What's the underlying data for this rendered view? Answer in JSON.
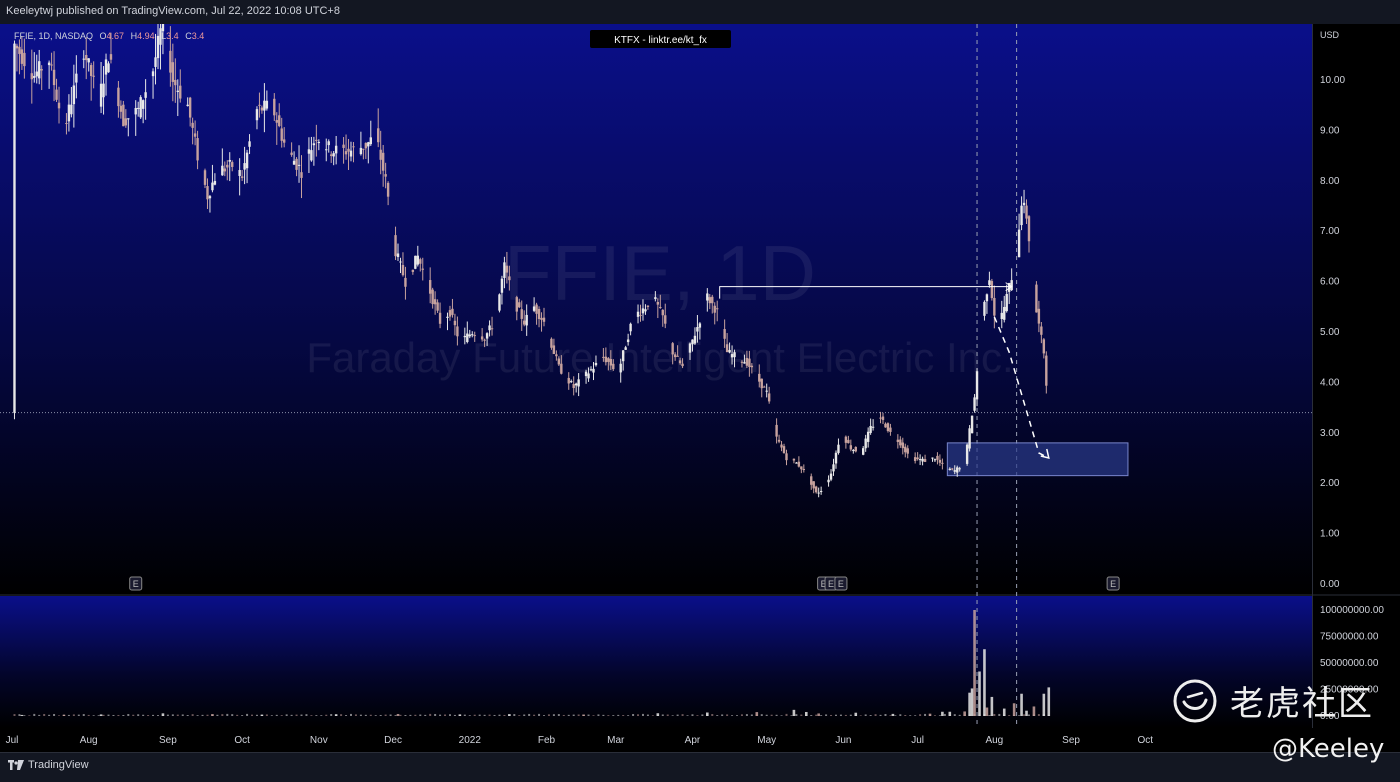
{
  "publisher": "Keeleytwj published on TradingView.com, Jul 22, 2022 10:08 UTC+8",
  "symbol_header": {
    "prefix": "FFIE, 1D, NASDAQ",
    "o_label": "O",
    "o_value": "4.67",
    "h_label": "H",
    "h_value": "4.94",
    "l_label": "L",
    "l_value": "3.4",
    "c_label": "C",
    "c_value": "3.4"
  },
  "banner": "KTFX - linktr.ee/kt_fx",
  "watermark_symbol": "FFIE, 1D",
  "watermark_name": "Faraday Future Intelligent Electric Inc.",
  "currency": "USD",
  "tradingview_label": "TradingView",
  "brand": {
    "name": "老虎社区",
    "handle": "@Keeley"
  },
  "earnings_marker": "E",
  "colors": {
    "background_top": "#0a0f8a",
    "background_bottom": "#000000",
    "candle_up": "#e8e8e8",
    "candle_down": "#c7a29e",
    "zone_fill": "#2b3a8c",
    "arrow": "#ffffff"
  },
  "chart_data": {
    "type": "candlestick",
    "price_axis": {
      "ticks": [
        "10.00",
        "9.00",
        "8.00",
        "7.00",
        "6.00",
        "5.00",
        "4.00",
        "3.00",
        "2.00",
        "1.00",
        "0.00"
      ],
      "ylim": [
        0,
        11.1
      ]
    },
    "volume_axis": {
      "ticks": [
        "100000000.00",
        "75000000.00",
        "50000000.00",
        "25000000.00",
        "0.00"
      ],
      "ylim": [
        0,
        106000000
      ]
    },
    "x_ticks": [
      "Jul",
      "Aug",
      "Sep",
      "Oct",
      "Nov",
      "Dec",
      "2022",
      "Feb",
      "Mar",
      "Apr",
      "May",
      "Jun",
      "Jul",
      "Aug",
      "Sep",
      "Oct"
    ],
    "x_tick_values": [
      -1,
      30,
      62,
      92,
      123,
      153,
      184,
      215,
      243,
      274,
      304,
      335,
      365,
      396,
      427,
      457
    ],
    "current_price": 3.4,
    "price_path": [
      [
        0,
        10.7
      ],
      [
        8,
        10.1
      ],
      [
        14,
        10.4
      ],
      [
        20,
        9.0
      ],
      [
        28,
        10.6
      ],
      [
        34,
        9.6
      ],
      [
        38,
        10.5
      ],
      [
        44,
        9.2
      ],
      [
        50,
        9.4
      ],
      [
        56,
        10.2
      ],
      [
        60,
        11.2
      ],
      [
        64,
        10.0
      ],
      [
        70,
        9.5
      ],
      [
        74,
        8.5
      ],
      [
        78,
        7.7
      ],
      [
        82,
        8.2
      ],
      [
        88,
        8.3
      ],
      [
        92,
        8.1
      ],
      [
        98,
        9.4
      ],
      [
        104,
        9.5
      ],
      [
        110,
        8.6
      ],
      [
        116,
        8.2
      ],
      [
        122,
        8.9
      ],
      [
        128,
        8.6
      ],
      [
        136,
        8.6
      ],
      [
        142,
        8.7
      ],
      [
        146,
        8.9
      ],
      [
        150,
        8.0
      ],
      [
        154,
        6.6
      ],
      [
        158,
        6.0
      ],
      [
        163,
        6.5
      ],
      [
        168,
        5.8
      ],
      [
        172,
        5.2
      ],
      [
        176,
        5.4
      ],
      [
        180,
        4.8
      ],
      [
        185,
        5.0
      ],
      [
        190,
        4.9
      ],
      [
        194,
        5.2
      ],
      [
        198,
        6.3
      ],
      [
        202,
        5.6
      ],
      [
        206,
        5.2
      ],
      [
        210,
        5.5
      ],
      [
        214,
        5.2
      ],
      [
        220,
        4.3
      ],
      [
        226,
        3.9
      ],
      [
        232,
        4.2
      ],
      [
        238,
        4.5
      ],
      [
        244,
        4.2
      ],
      [
        250,
        5.3
      ],
      [
        255,
        5.5
      ],
      [
        258,
        5.7
      ],
      [
        262,
        5.3
      ],
      [
        266,
        4.6
      ],
      [
        270,
        4.3
      ],
      [
        276,
        5.1
      ],
      [
        280,
        5.7
      ],
      [
        284,
        5.4
      ],
      [
        288,
        4.6
      ],
      [
        292,
        4.5
      ],
      [
        296,
        4.4
      ],
      [
        300,
        4.1
      ],
      [
        304,
        3.8
      ],
      [
        308,
        2.9
      ],
      [
        312,
        2.5
      ],
      [
        316,
        2.4
      ],
      [
        320,
        2.2
      ],
      [
        324,
        1.8
      ],
      [
        327,
        1.9
      ],
      [
        330,
        2.2
      ],
      [
        334,
        3.0
      ],
      [
        338,
        2.7
      ],
      [
        342,
        2.6
      ],
      [
        346,
        3.1
      ],
      [
        350,
        3.3
      ],
      [
        354,
        3.0
      ],
      [
        358,
        2.8
      ],
      [
        362,
        2.5
      ],
      [
        368,
        2.45
      ],
      [
        372,
        2.5
      ],
      [
        376,
        2.3
      ],
      [
        380,
        2.25
      ],
      [
        384,
        2.4
      ],
      [
        388,
        3.7
      ],
      [
        391,
        5.3
      ],
      [
        394,
        6.1
      ],
      [
        397,
        5.0
      ],
      [
        400,
        5.5
      ],
      [
        403,
        6.1
      ],
      [
        405,
        6.6
      ],
      [
        407,
        7.6
      ],
      [
        409,
        7.3
      ],
      [
        411,
        6.4
      ],
      [
        413,
        5.4
      ],
      [
        416,
        4.6
      ],
      [
        418,
        3.4
      ]
    ],
    "volume_bars": [
      [
        3,
        1.0
      ],
      [
        20,
        1.2
      ],
      [
        35,
        1.5
      ],
      [
        60,
        2.5
      ],
      [
        80,
        1.8
      ],
      [
        100,
        1.3
      ],
      [
        130,
        1.6
      ],
      [
        155,
        1.9
      ],
      [
        180,
        1.5
      ],
      [
        200,
        1.8
      ],
      [
        230,
        1.4
      ],
      [
        260,
        2.6
      ],
      [
        280,
        3.3
      ],
      [
        300,
        3.7
      ],
      [
        315,
        5.8
      ],
      [
        320,
        3.8
      ],
      [
        325,
        2.4
      ],
      [
        340,
        3.1
      ],
      [
        355,
        2.0
      ],
      [
        370,
        2.2
      ],
      [
        375,
        4.0
      ],
      [
        378,
        4.0
      ],
      [
        384,
        4.3
      ],
      [
        386,
        22
      ],
      [
        387,
        26
      ],
      [
        388,
        100
      ],
      [
        390,
        42
      ],
      [
        392,
        63
      ],
      [
        393,
        8
      ],
      [
        395,
        18
      ],
      [
        400,
        7
      ],
      [
        404,
        12
      ],
      [
        407,
        21
      ],
      [
        409,
        5
      ],
      [
        412,
        9
      ],
      [
        416,
        21
      ],
      [
        418,
        27
      ]
    ],
    "support_zone": {
      "x_start": 377,
      "x_end": 450,
      "y_low": 2.15,
      "y_high": 2.8
    },
    "resistance_line": {
      "x_start": 285,
      "x_end": 403,
      "y": 5.9
    },
    "projection_path": [
      [
        396,
        5.3
      ],
      [
        402,
        4.6
      ],
      [
        408,
        3.6
      ],
      [
        414,
        2.6
      ],
      [
        418,
        2.5
      ]
    ],
    "vertical_lines": [
      389,
      405
    ],
    "earnings_days": [
      49,
      327,
      330,
      334,
      444
    ]
  }
}
